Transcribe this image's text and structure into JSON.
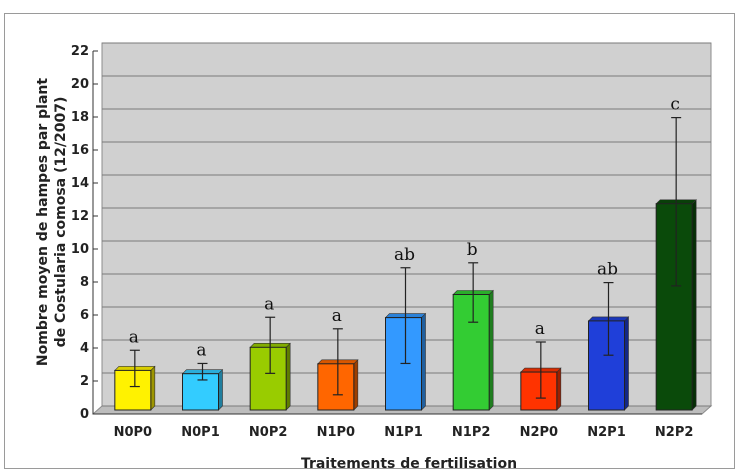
{
  "chart_data": {
    "type": "bar",
    "categories": [
      "N0P0",
      "N0P1",
      "N0P2",
      "N1P0",
      "N1P1",
      "N1P2",
      "N2P0",
      "N2P1",
      "N2P2"
    ],
    "values": [
      2.4,
      2.2,
      3.8,
      2.8,
      5.6,
      7.0,
      2.3,
      5.4,
      12.5
    ],
    "error_bars": [
      1.1,
      0.5,
      1.7,
      2.0,
      2.9,
      1.8,
      1.7,
      2.2,
      5.1
    ],
    "significance_letters": [
      "a",
      "a",
      "a",
      "a",
      "ab",
      "b",
      "a",
      "ab",
      "c"
    ],
    "colors": [
      "#fff200",
      "#33ccff",
      "#99cc00",
      "#ff6600",
      "#3399ff",
      "#33cc33",
      "#ff3300",
      "#1f3fd9",
      "#0a4a0a"
    ],
    "xlabel": "Traitements de fertilisation",
    "ylabel_line1": "Nombre moyen de hampes par plant",
    "ylabel_line2": "de Costularia comosa (12/2007)",
    "ylim": [
      0,
      22
    ],
    "yticks": [
      0,
      2,
      4,
      6,
      8,
      10,
      12,
      14,
      16,
      18,
      20,
      22
    ],
    "grid": true,
    "plot_background": "#d0d0d0",
    "legend": "none"
  }
}
